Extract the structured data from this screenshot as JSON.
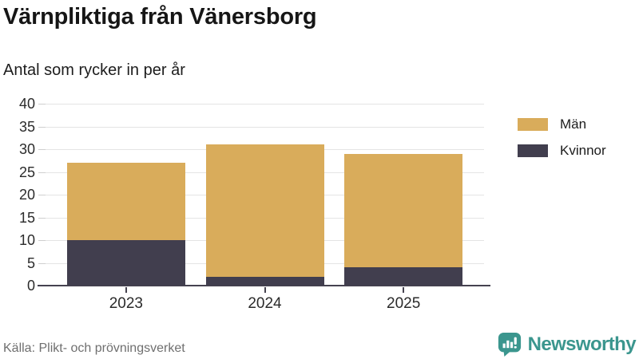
{
  "header": {
    "title": "Värnpliktiga från Vänersborg",
    "subtitle": "Antal som rycker in per år"
  },
  "chart_data": {
    "type": "bar",
    "stacked": true,
    "categories": [
      "2023",
      "2024",
      "2025"
    ],
    "series": [
      {
        "name": "Män",
        "color": "#d9ac5b",
        "values": [
          17,
          29,
          25
        ]
      },
      {
        "name": "Kvinnor",
        "color": "#413e4e",
        "values": [
          10,
          2,
          4
        ]
      }
    ],
    "stack_order_bottom_to_top": [
      "Kvinnor",
      "Män"
    ],
    "totals": [
      27,
      31,
      29
    ],
    "title": "Värnpliktiga från Vänersborg",
    "subtitle": "Antal som rycker in per år",
    "xlabel": "",
    "ylabel": "",
    "ylim": [
      0,
      40
    ],
    "yticks": [
      0,
      5,
      10,
      15,
      20,
      25,
      30,
      35,
      40
    ],
    "grid": true,
    "legend_position": "right"
  },
  "footer": {
    "source": "Källa: Plikt- och prövningsverket",
    "brand": "Newsworthy",
    "brand_color": "#3b968e"
  }
}
